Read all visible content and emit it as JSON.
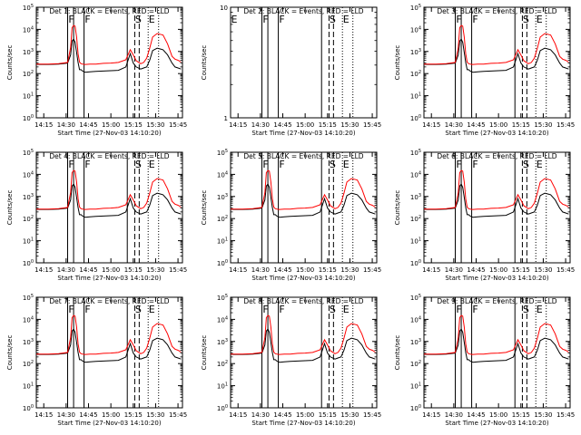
{
  "figure": {
    "x_axis_label": "Start Time (27-Nov-03 14:10:20)",
    "y_axis_label": "Counts/sec"
  },
  "chart_data": [
    {
      "type": "line",
      "title": "Det 1: BLACK = Events, RED = LLD",
      "flags": [
        "F",
        "F",
        "S",
        "E"
      ],
      "empty": false,
      "scale": 1.0,
      "x_ticks": [
        "14:15",
        "14:30",
        "14:45",
        "15:00",
        "15:15",
        "15:30",
        "15:45"
      ],
      "y_scale": "log",
      "y_ticks": [
        "10^0",
        "10^1",
        "10^2",
        "10^3",
        "10^4",
        "10^5"
      ],
      "xlim": [
        "14:10",
        "15:48"
      ],
      "ylim": [
        1,
        100000
      ]
    },
    {
      "type": "line",
      "title": "Det 2: BLACK = Events, RED = LLD",
      "flags": [
        "E",
        "F",
        "F",
        "S",
        "E"
      ],
      "empty": true,
      "scale": 1.0,
      "x_ticks": [
        "14:15",
        "14:30",
        "14:45",
        "15:00",
        "15:15",
        "15:30",
        "15:45"
      ],
      "y_scale": "log",
      "y_ticks": [
        "1",
        "10"
      ],
      "xlim": [
        "14:10",
        "15:48"
      ],
      "ylim": [
        1,
        10
      ]
    },
    {
      "type": "line",
      "title": "Det 3: BLACK = Events, RED = LLD",
      "flags": [
        "F",
        "F",
        "S",
        "E"
      ],
      "empty": false,
      "scale": 1.0,
      "x_ticks": [
        "14:15",
        "14:30",
        "14:45",
        "15:00",
        "15:15",
        "15:30",
        "15:45"
      ],
      "y_scale": "log",
      "y_ticks": [
        "10^0",
        "10^1",
        "10^2",
        "10^3",
        "10^4",
        "10^5"
      ],
      "xlim": [
        "14:10",
        "15:48"
      ],
      "ylim": [
        1,
        100000
      ]
    },
    {
      "type": "line",
      "title": "Det 4: BLACK = Events, RED = LLD",
      "flags": [
        "F",
        "F",
        "S",
        "E"
      ],
      "empty": false,
      "scale": 1.0,
      "x_ticks": [
        "14:15",
        "14:30",
        "14:45",
        "15:00",
        "15:15",
        "15:30",
        "15:45"
      ],
      "y_scale": "log",
      "y_ticks": [
        "10^0",
        "10^1",
        "10^2",
        "10^3",
        "10^4",
        "10^5"
      ],
      "xlim": [
        "14:10",
        "15:48"
      ],
      "ylim": [
        1,
        100000
      ]
    },
    {
      "type": "line",
      "title": "Det 5: BLACK = Events, RED = LLD",
      "flags": [
        "F",
        "F",
        "S",
        "E"
      ],
      "empty": false,
      "scale": 1.0,
      "x_ticks": [
        "14:15",
        "14:30",
        "14:45",
        "15:00",
        "15:15",
        "15:30",
        "15:45"
      ],
      "y_scale": "log",
      "y_ticks": [
        "10^0",
        "10^1",
        "10^2",
        "10^3",
        "10^4",
        "10^5"
      ],
      "xlim": [
        "14:10",
        "15:48"
      ],
      "ylim": [
        1,
        100000
      ]
    },
    {
      "type": "line",
      "title": "Det 6: BLACK = Events, RED = LLD",
      "flags": [
        "F",
        "F",
        "S",
        "E"
      ],
      "empty": false,
      "scale": 1.0,
      "x_ticks": [
        "14:15",
        "14:30",
        "14:45",
        "15:00",
        "15:15",
        "15:30",
        "15:45"
      ],
      "y_scale": "log",
      "y_ticks": [
        "10^0",
        "10^1",
        "10^2",
        "10^3",
        "10^4",
        "10^5"
      ],
      "xlim": [
        "14:10",
        "15:48"
      ],
      "ylim": [
        1,
        100000
      ]
    },
    {
      "type": "line",
      "title": "Det 7: BLACK = Events, RED = LLD",
      "flags": [
        "F",
        "F",
        "S",
        "E"
      ],
      "empty": false,
      "scale": 1.0,
      "x_ticks": [
        "14:15",
        "14:30",
        "14:45",
        "15:00",
        "15:15",
        "15:30",
        "15:45"
      ],
      "y_scale": "log",
      "y_ticks": [
        "10^0",
        "10^1",
        "10^2",
        "10^3",
        "10^4",
        "10^5"
      ],
      "xlim": [
        "14:10",
        "15:48"
      ],
      "ylim": [
        1,
        100000
      ]
    },
    {
      "type": "line",
      "title": "Det 8: BLACK = Events, RED = LLD",
      "flags": [
        "F",
        "F",
        "S",
        "E"
      ],
      "empty": false,
      "scale": 1.0,
      "x_ticks": [
        "14:15",
        "14:30",
        "14:45",
        "15:00",
        "15:15",
        "15:30",
        "15:45"
      ],
      "y_scale": "log",
      "y_ticks": [
        "10^0",
        "10^1",
        "10^2",
        "10^3",
        "10^4",
        "10^5"
      ],
      "xlim": [
        "14:10",
        "15:48"
      ],
      "ylim": [
        1,
        100000
      ]
    },
    {
      "type": "line",
      "title": "Det 9: BLACK = Events, RED = LLD",
      "flags": [
        "F",
        "F",
        "S",
        "E"
      ],
      "empty": false,
      "scale": 1.0,
      "x_ticks": [
        "14:15",
        "14:30",
        "14:45",
        "15:00",
        "15:15",
        "15:30",
        "15:45"
      ],
      "y_scale": "log",
      "y_ticks": [
        "10^0",
        "10^1",
        "10^2",
        "10^3",
        "10^4",
        "10^5"
      ],
      "xlim": [
        "14:10",
        "15:48"
      ],
      "ylim": [
        1,
        100000
      ]
    }
  ],
  "series_template": {
    "x": [
      "14:10",
      "14:18",
      "14:25",
      "14:31",
      "14:33",
      "14:34",
      "14:35",
      "14:36",
      "14:37",
      "14:38",
      "14:39",
      "14:40",
      "14:41",
      "14:42",
      "14:43",
      "14:46",
      "14:50",
      "14:55",
      "15:00",
      "15:05",
      "15:10",
      "15:13",
      "15:15",
      "15:17",
      "15:20",
      "15:22",
      "15:24",
      "15:26",
      "15:28",
      "15:31",
      "15:33",
      "15:35",
      "15:38",
      "15:41",
      "15:43",
      "15:45",
      "15:47"
    ],
    "events": [
      260,
      260,
      270,
      300,
      700,
      3000,
      3600,
      2600,
      900,
      320,
      150,
      150,
      130,
      120,
      115,
      120,
      125,
      130,
      135,
      140,
      200,
      800,
      300,
      200,
      160,
      180,
      200,
      400,
      1100,
      1400,
      1300,
      1200,
      700,
      300,
      200,
      180,
      160
    ],
    "lld": [
      270,
      270,
      280,
      320,
      1500,
      12000,
      15000,
      14000,
      4500,
      800,
      330,
      280,
      270,
      260,
      260,
      270,
      270,
      290,
      300,
      320,
      420,
      1200,
      700,
      380,
      280,
      320,
      500,
      1400,
      4500,
      6500,
      6000,
      5500,
      2200,
      600,
      450,
      400,
      330
    ],
    "solid_lines": [
      "14:31",
      "14:35",
      "14:42",
      "15:11"
    ],
    "dashed_lines": [
      "15:16",
      "15:19"
    ],
    "dotted_lines": [
      "15:25",
      "15:32"
    ],
    "colors": {
      "events": "#000000",
      "lld": "#ff0000"
    }
  }
}
